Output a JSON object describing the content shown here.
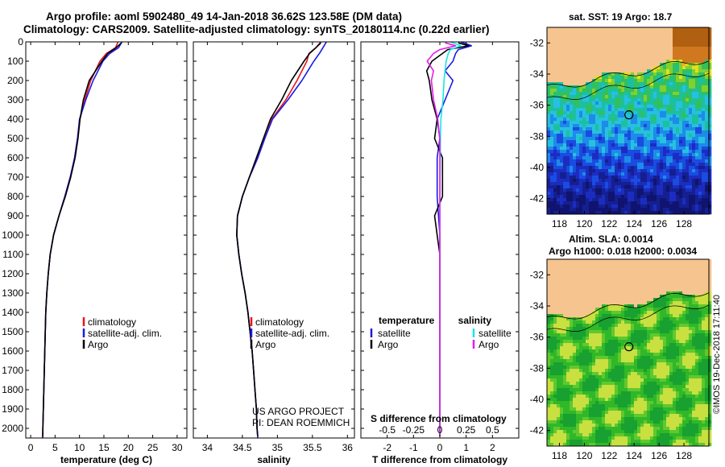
{
  "header": {
    "line1": "Argo profile: aoml 5902480_49 14-Jan-2018 36.62S 123.58E (DM data)",
    "line2": "Climatology: CARS2009. Satellite-adjusted climatology: synTS_20180114.nc (0.22d earlier)"
  },
  "colors": {
    "climatology": "#e8141c",
    "satellite": "#1a1ae6",
    "argo": "#000000",
    "argo_salinity_diff": "#e81ce8",
    "satellite_salinity_diff": "#19e6e6",
    "land": "#f6c48e"
  },
  "credits": {
    "project": "US ARGO PROJECT",
    "pi": "PI: DEAN ROEMMICH",
    "stamp": "©IMOS 19-Dec-2018 17:11:40"
  },
  "chart_data": [
    {
      "type": "line",
      "panel": "temperature",
      "xlabel": "temperature (deg C)",
      "ylabel": "",
      "xlim": [
        -1,
        32
      ],
      "ylim": [
        2050,
        0
      ],
      "xticks": [
        0,
        5,
        10,
        15,
        20,
        25,
        30
      ],
      "yticks": [
        0,
        100,
        200,
        300,
        400,
        500,
        600,
        700,
        800,
        900,
        1000,
        1100,
        1200,
        1300,
        1400,
        1500,
        1600,
        1700,
        1800,
        1900,
        2000
      ],
      "legend": [
        "climatology",
        "satellite-adj. clim.",
        "Argo"
      ],
      "legend_position": "lower-right",
      "series": [
        {
          "name": "climatology",
          "pressure": [
            0,
            30,
            60,
            100,
            200,
            300,
            400,
            500,
            600,
            700,
            800,
            900,
            1000,
            1100,
            1200,
            1300,
            1400,
            1500,
            1600,
            1700,
            1800,
            1900,
            2000,
            2050
          ],
          "values": [
            17.9,
            17.4,
            15.5,
            14.2,
            12.3,
            11.1,
            10.1,
            9.6,
            9.0,
            8.1,
            7.0,
            5.8,
            4.7,
            4.0,
            3.6,
            3.3,
            3.1,
            3.0,
            2.9,
            2.8,
            2.7,
            2.6,
            2.5,
            2.4
          ]
        },
        {
          "name": "satellite-adj. clim.",
          "pressure": [
            0,
            30,
            60,
            100,
            200,
            300,
            400,
            500,
            600,
            700,
            800,
            900,
            1000,
            1100,
            1200,
            1300,
            1400,
            1500,
            1600,
            1700,
            1800,
            1900,
            2000,
            2050
          ],
          "values": [
            18.7,
            18.0,
            16.2,
            14.8,
            12.8,
            11.3,
            10.0,
            9.6,
            9.0,
            8.1,
            7.0,
            5.8,
            4.7,
            4.0,
            3.6,
            3.3,
            3.1,
            3.0,
            2.9,
            2.8,
            2.7,
            2.6,
            2.5,
            2.5
          ]
        },
        {
          "name": "Argo",
          "pressure": [
            5,
            30,
            60,
            100,
            200,
            300,
            400,
            500,
            600,
            700,
            800,
            900,
            1000,
            1100,
            1200,
            1300,
            1400,
            1500,
            1600,
            1700,
            1800,
            1900,
            2000,
            2040
          ],
          "values": [
            18.6,
            17.5,
            15.8,
            14.6,
            12.0,
            10.8,
            10.1,
            9.7,
            9.1,
            8.2,
            7.1,
            5.8,
            4.7,
            4.0,
            3.6,
            3.3,
            3.1,
            3.0,
            2.9,
            2.8,
            2.7,
            2.6,
            2.5,
            2.5
          ]
        }
      ]
    },
    {
      "type": "line",
      "panel": "salinity",
      "xlabel": "salinity",
      "ylabel": "",
      "xlim": [
        33.8,
        36.1
      ],
      "ylim": [
        2050,
        0
      ],
      "xticks": [
        34,
        34.5,
        35,
        35.5,
        36
      ],
      "legend": [
        "climatology",
        "satellite-adj. clim.",
        "Argo"
      ],
      "legend_position": "lower-right",
      "series": [
        {
          "name": "climatology",
          "pressure": [
            0,
            30,
            60,
            100,
            200,
            300,
            400,
            500,
            600,
            700,
            800,
            900,
            1000,
            1100,
            1200,
            1300,
            1400,
            1500,
            1600,
            1700,
            1800,
            1900,
            2000,
            2050
          ],
          "values": [
            35.62,
            35.55,
            35.45,
            35.42,
            35.28,
            35.12,
            34.92,
            34.82,
            34.72,
            34.6,
            34.5,
            34.43,
            34.42,
            34.45,
            34.49,
            34.54,
            34.58,
            34.61,
            34.64,
            34.66,
            34.68,
            34.7,
            34.71,
            34.72
          ]
        },
        {
          "name": "satellite-adj. clim.",
          "pressure": [
            0,
            30,
            60,
            100,
            200,
            300,
            400,
            500,
            600,
            700,
            800,
            900,
            1000,
            1100,
            1200,
            1300,
            1400,
            1500,
            1600,
            1700,
            1800,
            1900,
            2000,
            2050
          ],
          "values": [
            35.7,
            35.65,
            35.6,
            35.52,
            35.35,
            35.15,
            34.93,
            34.82,
            34.72,
            34.6,
            34.5,
            34.43,
            34.42,
            34.45,
            34.49,
            34.54,
            34.58,
            34.61,
            34.64,
            34.66,
            34.68,
            34.7,
            34.71,
            34.72
          ]
        },
        {
          "name": "Argo",
          "pressure": [
            5,
            30,
            60,
            100,
            200,
            300,
            400,
            500,
            600,
            700,
            800,
            900,
            1000,
            1100,
            1200,
            1300,
            1400,
            1500,
            1600,
            1700,
            1800,
            1900,
            2000,
            2040
          ],
          "values": [
            35.62,
            35.55,
            35.46,
            35.38,
            35.2,
            35.06,
            34.9,
            34.8,
            34.7,
            34.6,
            34.5,
            34.43,
            34.42,
            34.45,
            34.49,
            34.54,
            34.58,
            34.61,
            34.64,
            34.66,
            34.68,
            34.7,
            34.71,
            34.72
          ]
        }
      ]
    },
    {
      "type": "line",
      "panel": "difference",
      "xlabel": "T difference from climatology",
      "xlabel2": "S difference from climatology",
      "ylabel": "",
      "xlim": [
        -3,
        3
      ],
      "ylim": [
        2050,
        0
      ],
      "xticks": [
        -2,
        -1,
        0,
        1,
        2
      ],
      "xticks_s": [
        "-0.5",
        "-0.25",
        "0",
        "0.25",
        "0.5"
      ],
      "legend_groups": {
        "temperature": [
          "satellite",
          "Argo"
        ],
        "salinity": [
          "satellite",
          "Argo"
        ]
      },
      "legend_position": "lower",
      "series": [
        {
          "name": "satellite",
          "group": "temperature",
          "pressure": [
            0,
            20,
            40,
            60,
            100,
            150,
            200,
            300,
            400,
            500,
            600,
            800,
            1000,
            1200,
            1500,
            2000,
            2040
          ],
          "values": [
            0.8,
            1.2,
            0.7,
            0.6,
            0.5,
            0.2,
            0.5,
            0.2,
            -0.1,
            0.0,
            -0.1,
            -0.1,
            0.0,
            0.0,
            0.0,
            0.0,
            0.0
          ]
        },
        {
          "name": "Argo",
          "group": "temperature",
          "pressure": [
            5,
            20,
            40,
            60,
            100,
            150,
            200,
            300,
            400,
            500,
            600,
            800,
            900,
            1000,
            1100,
            1200,
            1500,
            2000,
            2040
          ],
          "values": [
            0.7,
            1.1,
            0.3,
            0.1,
            -0.3,
            -0.5,
            -0.4,
            -0.3,
            -0.1,
            -0.2,
            0.1,
            0.1,
            -0.2,
            -0.1,
            0.0,
            0.0,
            0.0,
            0.0,
            0.0
          ]
        },
        {
          "name": "satellite",
          "group": "salinity",
          "pressure": [
            0,
            20,
            40,
            60,
            100,
            150,
            200,
            300,
            400,
            500,
            800,
            1000,
            1500,
            2000,
            2040
          ],
          "values": [
            0.1,
            0.2,
            0.1,
            0.08,
            0.06,
            0.05,
            0.04,
            0.03,
            0.01,
            0.005,
            0.0,
            0.0,
            0.0,
            0.0,
            0.0
          ]
        },
        {
          "name": "Argo",
          "group": "salinity",
          "pressure": [
            5,
            20,
            40,
            60,
            100,
            150,
            200,
            300,
            400,
            500,
            800,
            1000,
            1500,
            2000,
            2040
          ],
          "values": [
            0.05,
            0.15,
            0.0,
            -0.06,
            -0.12,
            -0.06,
            -0.08,
            -0.06,
            -0.02,
            0.0,
            0.0,
            0.0,
            0.0,
            0.0,
            0.0
          ]
        }
      ]
    },
    {
      "type": "heatmap",
      "panel": "sst-map",
      "title": "sat. SST: 19 Argo: 18.7",
      "xlim": [
        117,
        130
      ],
      "ylim": [
        -43,
        -31
      ],
      "xticks": [
        118,
        120,
        122,
        124,
        126,
        128
      ],
      "yticks": [
        -32,
        -34,
        -36,
        -38,
        -40,
        -42
      ],
      "argo_position": {
        "lon": 123.58,
        "lat": -36.62
      }
    },
    {
      "type": "heatmap",
      "panel": "sla-map",
      "title": "Altim. SLA: 0.0014",
      "subtitle": "Argo h1000: 0.018 h2000: 0.0034",
      "xlim": [
        117,
        130
      ],
      "ylim": [
        -43,
        -31
      ],
      "xticks": [
        118,
        120,
        122,
        124,
        126,
        128
      ],
      "yticks": [
        -32,
        -34,
        -36,
        -38,
        -40,
        -42
      ],
      "argo_position": {
        "lon": 123.58,
        "lat": -36.62
      }
    }
  ]
}
